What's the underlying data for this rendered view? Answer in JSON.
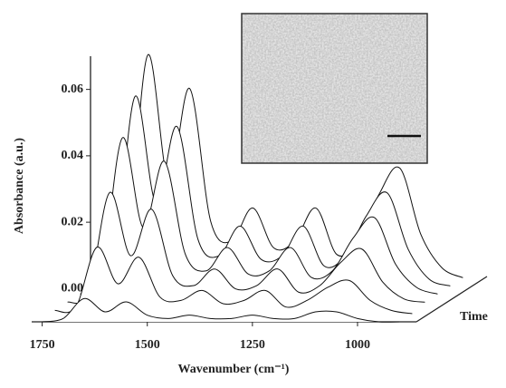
{
  "chart_data": {
    "type": "waterfall",
    "xlabel": "Wavenumber (cm⁻¹)",
    "ylabel": "Absorbance (a.u.)",
    "zlabel": "Time",
    "x": [
      1750,
      1700,
      1650,
      1600,
      1550,
      1500,
      1450,
      1400,
      1350,
      1300,
      1250,
      1200,
      1150,
      1100,
      1050,
      1000,
      950,
      900
    ],
    "xlim": [
      1775,
      860
    ],
    "xticks": [
      1750,
      1500,
      1250,
      1000
    ],
    "ylim": [
      -0.01,
      0.07
    ],
    "yticks": [
      {
        "value": 0,
        "label": "0.00"
      },
      {
        "value": 0.02,
        "label": "0.02"
      },
      {
        "value": 0.04,
        "label": "0.04"
      },
      {
        "value": 0.06,
        "label": "0.06"
      }
    ],
    "color": "#111111",
    "series": [
      {
        "values": [
          0.0,
          0.001,
          0.007,
          0.003,
          0.006,
          0.002,
          0.001,
          0.002,
          0.001,
          0.001,
          0.002,
          0.001,
          0.001,
          0.003,
          0.003,
          0.001,
          0.0,
          0.0
        ]
      },
      {
        "values": [
          0.001,
          0.002,
          0.02,
          0.009,
          0.017,
          0.005,
          0.004,
          0.007,
          0.003,
          0.004,
          0.007,
          0.002,
          0.004,
          0.008,
          0.01,
          0.004,
          0.001,
          0.0
        ]
      },
      {
        "values": [
          0.001,
          0.004,
          0.034,
          0.015,
          0.029,
          0.009,
          0.006,
          0.011,
          0.005,
          0.006,
          0.011,
          0.004,
          0.006,
          0.013,
          0.017,
          0.007,
          0.002,
          0.001
        ]
      },
      {
        "values": [
          0.001,
          0.006,
          0.048,
          0.021,
          0.041,
          0.013,
          0.008,
          0.015,
          0.007,
          0.008,
          0.015,
          0.006,
          0.008,
          0.018,
          0.024,
          0.01,
          0.003,
          0.001
        ]
      },
      {
        "values": [
          0.002,
          0.007,
          0.058,
          0.026,
          0.049,
          0.015,
          0.01,
          0.019,
          0.009,
          0.01,
          0.019,
          0.007,
          0.01,
          0.022,
          0.029,
          0.012,
          0.003,
          0.001
        ]
      },
      {
        "values": [
          0.002,
          0.008,
          0.068,
          0.03,
          0.058,
          0.018,
          0.012,
          0.022,
          0.01,
          0.012,
          0.022,
          0.008,
          0.012,
          0.026,
          0.034,
          0.014,
          0.004,
          0.001
        ]
      }
    ]
  }
}
